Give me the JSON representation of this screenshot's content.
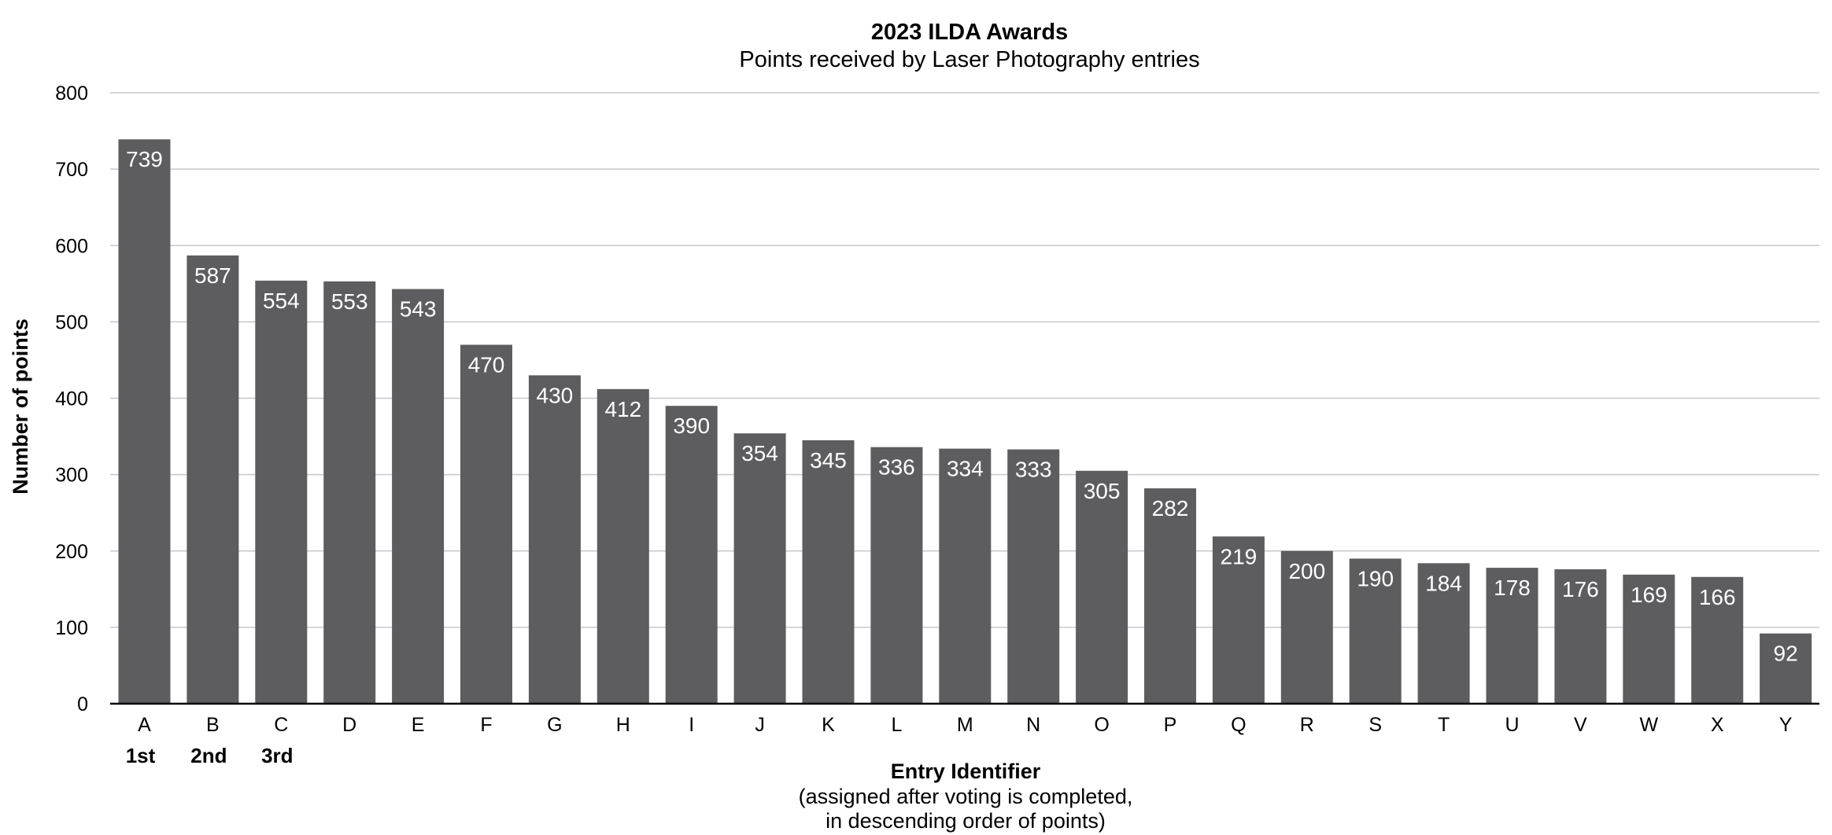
{
  "chart_data": {
    "type": "bar",
    "title": "2023 ILDA Awards",
    "subtitle": "Points received by Laser Photography entries",
    "xlabel": "Entry Identifier",
    "xlabel_sub": [
      "(assigned after voting is completed,",
      "in descending order of points)"
    ],
    "ylabel": "Number of points",
    "ylim": [
      0,
      800
    ],
    "yticks": [
      0,
      100,
      200,
      300,
      400,
      500,
      600,
      700,
      800
    ],
    "grid": true,
    "categories": [
      "A",
      "B",
      "C",
      "D",
      "E",
      "F",
      "G",
      "H",
      "I",
      "J",
      "K",
      "L",
      "M",
      "N",
      "O",
      "P",
      "Q",
      "R",
      "S",
      "T",
      "U",
      "V",
      "W",
      "X",
      "Y"
    ],
    "values": [
      739,
      587,
      554,
      553,
      543,
      470,
      430,
      412,
      390,
      354,
      345,
      336,
      334,
      333,
      305,
      282,
      219,
      200,
      190,
      184,
      178,
      176,
      169,
      166,
      92
    ],
    "ranks": [
      "1st",
      "2nd",
      "3rd"
    ],
    "bar_color": "#5d5d5f"
  }
}
